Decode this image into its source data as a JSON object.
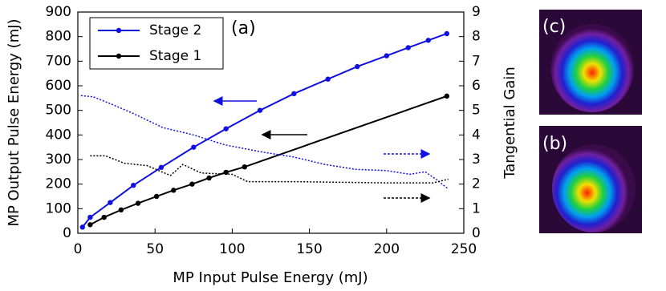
{
  "chart_data": {
    "type": "line",
    "x_label": "MP Input Pulse Energy (mJ)",
    "y_label": "MP Output Pulse Energy (mJ)",
    "y2_label": "Tangential Gain",
    "annotation": "(a)",
    "xlim": [
      0,
      250
    ],
    "xticks": [
      0,
      50,
      100,
      150,
      200,
      250
    ],
    "ylim": [
      0,
      900
    ],
    "yticks": [
      0,
      100,
      200,
      300,
      400,
      500,
      600,
      700,
      800,
      900
    ],
    "y2lim": [
      0,
      9
    ],
    "y2ticks": [
      0,
      1,
      2,
      3,
      4,
      5,
      6,
      7,
      8,
      9
    ],
    "series": [
      {
        "name": "Stage 2",
        "color": "#1010e0",
        "style": "solid",
        "x": [
          3,
          8,
          21,
          36,
          54,
          75,
          96,
          118,
          140,
          162,
          181,
          200,
          214,
          227,
          239
        ],
        "values": [
          25,
          65,
          125,
          195,
          268,
          350,
          425,
          500,
          568,
          627,
          678,
          722,
          755,
          785,
          812
        ]
      },
      {
        "name": "Stage 1",
        "color": "#000000",
        "style": "solid",
        "x": [
          8,
          17,
          28,
          39,
          51,
          62,
          74,
          85,
          96,
          108,
          239
        ],
        "values": [
          35,
          65,
          95,
          122,
          150,
          175,
          200,
          225,
          248,
          270,
          558
        ]
      },
      {
        "color": "#1010e0",
        "style": "dotted",
        "axis": "y2",
        "x": [
          2,
          10,
          20,
          35,
          55,
          75,
          95,
          120,
          140,
          160,
          180,
          200,
          215,
          225,
          232,
          240
        ],
        "values": [
          5.6,
          5.55,
          5.3,
          4.9,
          4.3,
          4.0,
          3.6,
          3.3,
          3.1,
          2.8,
          2.6,
          2.55,
          2.4,
          2.5,
          2.2,
          1.8
        ]
      },
      {
        "color": "#000000",
        "style": "dotted",
        "axis": "y2",
        "x": [
          8,
          18,
          30,
          45,
          60,
          68,
          80,
          100,
          110,
          140,
          200,
          230,
          240
        ],
        "values": [
          3.15,
          3.15,
          2.85,
          2.75,
          2.35,
          2.8,
          2.45,
          2.4,
          2.1,
          2.1,
          2.05,
          2.05,
          2.2
        ]
      }
    ],
    "images": [
      "(c)",
      "(b)"
    ]
  }
}
